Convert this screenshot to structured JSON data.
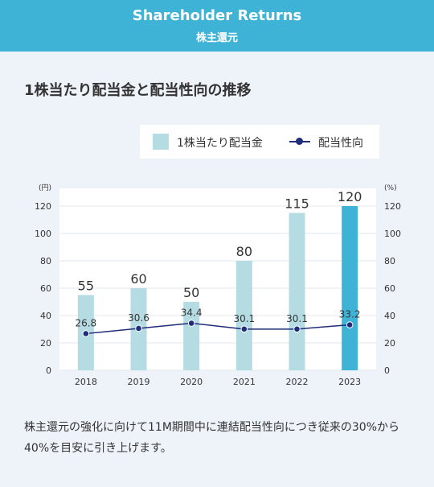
{
  "header": {
    "title": "Shareholder Returns",
    "subtitle": "株主還元"
  },
  "section_title": "1株当たり配当金と配当性向の推移",
  "legend": {
    "bar_label": "1株当たり配当金",
    "line_label": "配当性向"
  },
  "note": "株主還元の強化に向けて11M期間中に連結配当性向につき従来の30%から40%を目安に引き上げます。",
  "colors": {
    "bar": "#b5dbe3",
    "highlight_bar": "#3fb3d6",
    "line": "#1f2d7a",
    "header": "#3fb3d6"
  },
  "chart_data": {
    "type": "bar",
    "categories": [
      "2018",
      "2019",
      "2020",
      "2021",
      "2022",
      "2023"
    ],
    "series": [
      {
        "name": "1株当たり配当金",
        "type": "bar",
        "axis": "left",
        "values": [
          55,
          60,
          50,
          80,
          115,
          120
        ]
      },
      {
        "name": "配当性向",
        "type": "line",
        "axis": "right",
        "values": [
          26.8,
          30.6,
          34.4,
          30.1,
          30.1,
          33.2
        ]
      }
    ],
    "ylabel": "(円)",
    "y2label": "(%)",
    "ylim": [
      0,
      120
    ],
    "y2lim": [
      0,
      120
    ],
    "yticks": [
      0,
      20,
      40,
      60,
      80,
      100,
      120
    ],
    "highlight_category": "2023",
    "grid": true
  }
}
